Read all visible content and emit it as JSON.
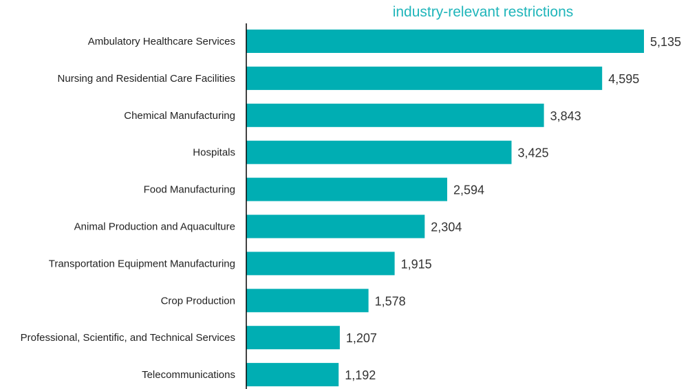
{
  "chart_data": {
    "type": "bar",
    "orientation": "horizontal",
    "title": "industry-relevant restrictions",
    "categories": [
      "Ambulatory Healthcare Services",
      "Nursing and Residential Care Facilities",
      "Chemical Manufacturing",
      "Hospitals",
      "Food Manufacturing",
      "Animal Production and Aquaculture",
      "Transportation Equipment Manufacturing",
      "Crop Production",
      "Professional, Scientific, and Technical Services",
      "Telecommunications"
    ],
    "values": [
      5135,
      4595,
      3843,
      3425,
      2594,
      2304,
      1915,
      1578,
      1207,
      1192
    ],
    "value_labels": [
      "5,135",
      "4,595",
      "3,843",
      "3,425",
      "2,594",
      "2,304",
      "1,915",
      "1,578",
      "1,207",
      "1,192"
    ],
    "xlim": [
      0,
      5135
    ],
    "grid": false,
    "legend": "none",
    "colors": {
      "bar": "#00AEB3",
      "title": "#1FB5BA",
      "axis": "#000000"
    }
  }
}
